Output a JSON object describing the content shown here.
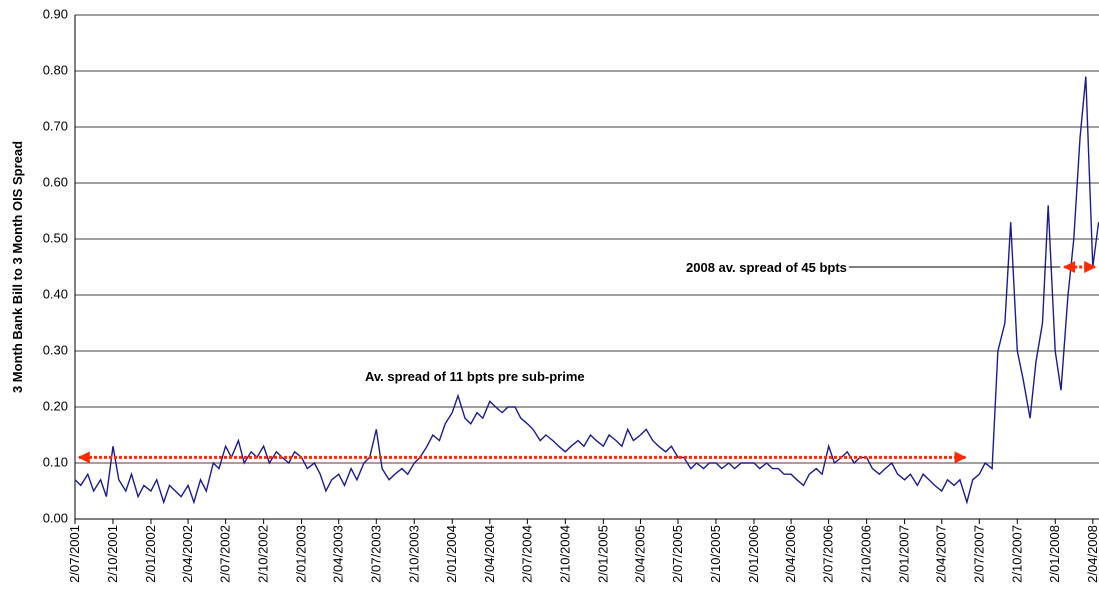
{
  "chart_data": {
    "type": "line",
    "ylabel": "3 Month Bank Bill to 3 Month OIS Spread",
    "color": "#1c1c8f",
    "grid": true,
    "ylim": [
      0,
      0.9
    ],
    "yticks": [
      {
        "value": 0,
        "label": "0.00"
      },
      {
        "value": 0.1,
        "label": "0.10"
      },
      {
        "value": 0.2,
        "label": "0.20"
      },
      {
        "value": 0.3,
        "label": "0.30"
      },
      {
        "value": 0.4,
        "label": "0.40"
      },
      {
        "value": 0.5,
        "label": "0.50"
      },
      {
        "value": 0.6,
        "label": "0.60"
      },
      {
        "value": 0.7,
        "label": "0.70"
      },
      {
        "value": 0.8,
        "label": "0.80"
      },
      {
        "value": 0.9,
        "label": "0.90"
      }
    ],
    "xlim": [
      "2/07/2001",
      "17/04/2008"
    ],
    "xticks": [
      "2/07/2001",
      "2/10/2001",
      "2/01/2002",
      "2/04/2002",
      "2/07/2002",
      "2/10/2002",
      "2/01/2003",
      "2/04/2003",
      "2/07/2003",
      "2/10/2003",
      "2/01/2004",
      "2/04/2004",
      "2/07/2004",
      "2/10/2004",
      "2/01/2005",
      "2/04/2005",
      "2/07/2005",
      "2/10/2005",
      "2/01/2006",
      "2/04/2006",
      "2/07/2006",
      "2/10/2006",
      "2/01/2007",
      "2/04/2007",
      "2/07/2007",
      "2/10/2007",
      "2/01/2008",
      "2/04/2008"
    ],
    "x": [
      "2/07/2001",
      "16/07/2001",
      "2/08/2001",
      "16/08/2001",
      "2/09/2001",
      "16/09/2001",
      "2/10/2001",
      "16/10/2001",
      "2/11/2001",
      "16/11/2001",
      "2/12/2001",
      "16/12/2001",
      "2/01/2002",
      "16/01/2002",
      "2/02/2002",
      "16/02/2002",
      "2/03/2002",
      "16/03/2002",
      "2/04/2002",
      "16/04/2002",
      "2/05/2002",
      "16/05/2002",
      "2/06/2002",
      "16/06/2002",
      "2/07/2002",
      "16/07/2002",
      "2/08/2002",
      "16/08/2002",
      "2/09/2002",
      "16/09/2002",
      "2/10/2002",
      "16/10/2002",
      "2/11/2002",
      "16/11/2002",
      "2/12/2002",
      "16/12/2002",
      "2/01/2003",
      "16/01/2003",
      "2/02/2003",
      "16/02/2003",
      "2/03/2003",
      "16/03/2003",
      "2/04/2003",
      "16/04/2003",
      "2/05/2003",
      "16/05/2003",
      "2/06/2003",
      "16/06/2003",
      "2/07/2003",
      "16/07/2003",
      "2/08/2003",
      "16/08/2003",
      "2/09/2003",
      "16/09/2003",
      "2/10/2003",
      "16/10/2003",
      "2/11/2003",
      "16/11/2003",
      "2/12/2003",
      "16/12/2003",
      "2/01/2004",
      "16/01/2004",
      "2/02/2004",
      "16/02/2004",
      "2/03/2004",
      "16/03/2004",
      "2/04/2004",
      "16/04/2004",
      "2/05/2004",
      "16/05/2004",
      "2/06/2004",
      "16/06/2004",
      "2/07/2004",
      "16/07/2004",
      "2/08/2004",
      "16/08/2004",
      "2/09/2004",
      "16/09/2004",
      "2/10/2004",
      "16/10/2004",
      "2/11/2004",
      "16/11/2004",
      "2/12/2004",
      "16/12/2004",
      "2/01/2005",
      "16/01/2005",
      "2/02/2005",
      "16/02/2005",
      "2/03/2005",
      "16/03/2005",
      "2/04/2005",
      "16/04/2005",
      "2/05/2005",
      "16/05/2005",
      "2/06/2005",
      "16/06/2005",
      "2/07/2005",
      "16/07/2005",
      "2/08/2005",
      "16/08/2005",
      "2/09/2005",
      "16/09/2005",
      "2/10/2005",
      "16/10/2005",
      "2/11/2005",
      "16/11/2005",
      "2/12/2005",
      "16/12/2005",
      "2/01/2006",
      "16/01/2006",
      "2/02/2006",
      "16/02/2006",
      "2/03/2006",
      "16/03/2006",
      "2/04/2006",
      "16/04/2006",
      "2/05/2006",
      "16/05/2006",
      "2/06/2006",
      "16/06/2006",
      "2/07/2006",
      "16/07/2006",
      "2/08/2006",
      "16/08/2006",
      "2/09/2006",
      "16/09/2006",
      "2/10/2006",
      "16/10/2006",
      "2/11/2006",
      "16/11/2006",
      "2/12/2006",
      "16/12/2006",
      "2/01/2007",
      "16/01/2007",
      "2/02/2007",
      "16/02/2007",
      "2/03/2007",
      "16/03/2007",
      "2/04/2007",
      "16/04/2007",
      "2/05/2007",
      "16/05/2007",
      "2/06/2007",
      "16/06/2007",
      "2/07/2007",
      "16/07/2007",
      "2/08/2007",
      "16/08/2007",
      "2/09/2007",
      "16/09/2007",
      "2/10/2007",
      "16/10/2007",
      "2/11/2007",
      "16/11/2007",
      "2/12/2007",
      "16/12/2007",
      "2/01/2008",
      "16/01/2008",
      "2/02/2008",
      "16/02/2008",
      "2/03/2008",
      "16/03/2008",
      "2/04/2008",
      "16/04/2008"
    ],
    "values": [
      0.07,
      0.06,
      0.08,
      0.05,
      0.07,
      0.04,
      0.13,
      0.07,
      0.05,
      0.08,
      0.04,
      0.06,
      0.05,
      0.07,
      0.03,
      0.06,
      0.05,
      0.04,
      0.06,
      0.03,
      0.07,
      0.05,
      0.1,
      0.09,
      0.13,
      0.11,
      0.14,
      0.1,
      0.12,
      0.11,
      0.13,
      0.1,
      0.12,
      0.11,
      0.1,
      0.12,
      0.11,
      0.09,
      0.1,
      0.08,
      0.05,
      0.07,
      0.08,
      0.06,
      0.09,
      0.07,
      0.1,
      0.11,
      0.16,
      0.09,
      0.07,
      0.08,
      0.09,
      0.08,
      0.1,
      0.11,
      0.13,
      0.15,
      0.14,
      0.17,
      0.19,
      0.22,
      0.18,
      0.17,
      0.19,
      0.18,
      0.21,
      0.2,
      0.19,
      0.2,
      0.2,
      0.18,
      0.17,
      0.16,
      0.14,
      0.15,
      0.14,
      0.13,
      0.12,
      0.13,
      0.14,
      0.13,
      0.15,
      0.14,
      0.13,
      0.15,
      0.14,
      0.13,
      0.16,
      0.14,
      0.15,
      0.16,
      0.14,
      0.13,
      0.12,
      0.13,
      0.11,
      0.11,
      0.09,
      0.1,
      0.09,
      0.1,
      0.1,
      0.09,
      0.1,
      0.09,
      0.1,
      0.1,
      0.1,
      0.09,
      0.1,
      0.09,
      0.09,
      0.08,
      0.08,
      0.07,
      0.06,
      0.08,
      0.09,
      0.08,
      0.13,
      0.1,
      0.11,
      0.12,
      0.1,
      0.11,
      0.11,
      0.09,
      0.08,
      0.09,
      0.1,
      0.08,
      0.07,
      0.08,
      0.06,
      0.08,
      0.07,
      0.06,
      0.05,
      0.07,
      0.06,
      0.07,
      0.03,
      0.07,
      0.08,
      0.1,
      0.09,
      0.3,
      0.35,
      0.53,
      0.3,
      0.25,
      0.18,
      0.28,
      0.35,
      0.56,
      0.3,
      0.23,
      0.4,
      0.5,
      0.68,
      0.79,
      0.45,
      0.53
    ],
    "reference_lines": [
      {
        "label": "Av. spread of 11 bpts pre sub-prime",
        "value": 0.11,
        "x": [
          "2/07/2001",
          "8/06/2007"
        ]
      },
      {
        "label": "2008 av. spread of 45 bpts",
        "value": 0.45,
        "x": [
          "14/01/2008",
          "17/04/2008"
        ]
      }
    ]
  }
}
